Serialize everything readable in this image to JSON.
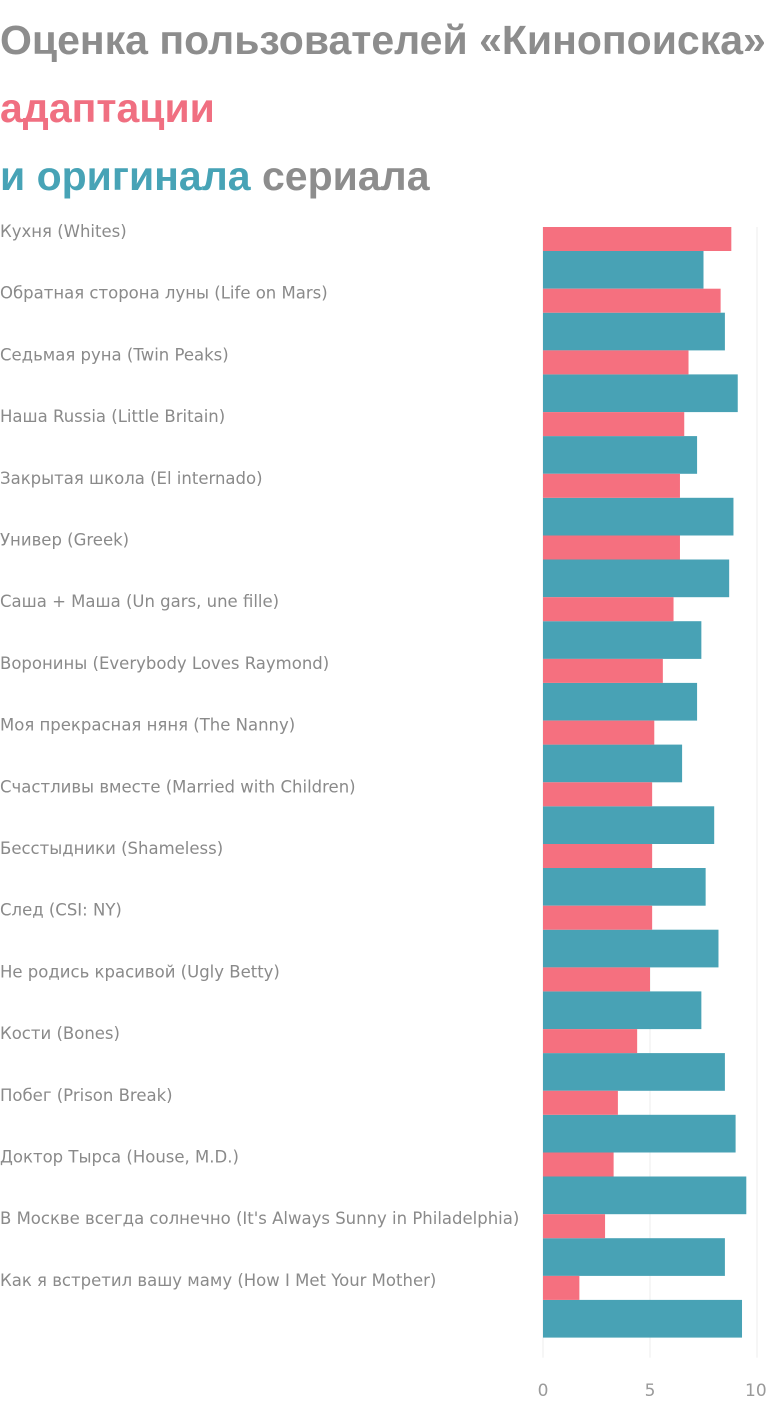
{
  "title": {
    "part1": "Оценка пользователей «Кинопоиска»",
    "part2": "адаптации",
    "part3": "и оригинала",
    "part4": "сериала"
  },
  "colors": {
    "adaptation": "#f5707f",
    "original": "#48a2b5",
    "title_gray": "#8d8d8d",
    "text": "#8a8a8a",
    "grid": "#ececec"
  },
  "chart_data": {
    "type": "bar",
    "orientation": "horizontal",
    "xlim": [
      0,
      10
    ],
    "ticks": [
      "0",
      "5",
      "10"
    ],
    "categories": [
      "Кухня (Whites)",
      "Обратная сторона луны (Life on Mars)",
      "Седьмая руна (Twin Peaks)",
      "Наша Russia (Little Britain)",
      "Закрытая школа (El internado)",
      "Универ (Greek)",
      "Саша + Маша (Un gars, une fille)",
      "Воронины (Everybody Loves Raymond)",
      "Моя прекрасная няня (The Nanny)",
      "Счастливы вместе (Married with Children)",
      "Бесстыдники (Shameless)",
      "След (CSI: NY)",
      "Не родись красивой (Ugly Betty)",
      "Кости (Bones)",
      "Побег (Prison Break)",
      "Доктор Тырса (House, M.D.)",
      "В Москве всегда солнечно (It's Always Sunny in Philadelphia)",
      "Как я встретил вашу маму (How I Met Your Mother)"
    ],
    "series": [
      {
        "name": "адаптации",
        "values": [
          8.8,
          8.3,
          6.8,
          6.6,
          6.4,
          6.4,
          6.1,
          5.6,
          5.2,
          5.1,
          5.1,
          5.1,
          5.0,
          4.4,
          3.5,
          3.3,
          2.9,
          1.7
        ]
      },
      {
        "name": "оригинала",
        "values": [
          7.5,
          8.5,
          9.1,
          7.2,
          8.9,
          8.7,
          7.4,
          7.2,
          6.5,
          8.0,
          7.6,
          8.2,
          7.4,
          8.5,
          9.0,
          9.5,
          8.5,
          9.3
        ]
      }
    ]
  }
}
